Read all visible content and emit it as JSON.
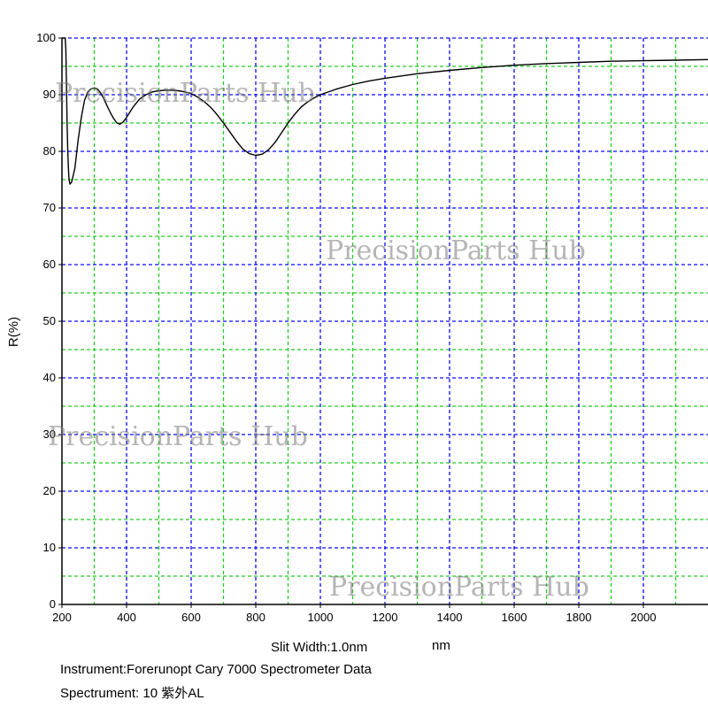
{
  "chart_data": {
    "type": "line",
    "xlabel": "nm",
    "ylabel": "R(%)",
    "xlim": [
      200,
      2200
    ],
    "ylim": [
      0,
      100
    ],
    "x_ticks": [
      200,
      400,
      600,
      800,
      1000,
      1200,
      1400,
      1600,
      1800,
      2000
    ],
    "y_ticks": [
      0,
      10,
      20,
      30,
      40,
      50,
      60,
      70,
      80,
      90,
      100
    ],
    "x_minor_step": 100,
    "y_minor_step": 5,
    "grid": true,
    "grid_colors": {
      "major": "#0a0aff",
      "minor": "#22cc22"
    },
    "line_color": "#000000",
    "series": [
      {
        "x": [
          200,
          205,
          208,
          210,
          212,
          214,
          216,
          218,
          220,
          222,
          225,
          230,
          240,
          250,
          260,
          270,
          280,
          290,
          300,
          310,
          320,
          330,
          340,
          350,
          360,
          370,
          380,
          390,
          400,
          420,
          440,
          460,
          480,
          500,
          520,
          540,
          560,
          580,
          600,
          620,
          640,
          660,
          680,
          700,
          720,
          740,
          760,
          780,
          800,
          820,
          840,
          860,
          880,
          900,
          920,
          940,
          960,
          980,
          1000,
          1050,
          1100,
          1150,
          1200,
          1300,
          1400,
          1500,
          1600,
          1700,
          1800,
          1900,
          2000,
          2100,
          2200
        ],
        "y": [
          100,
          100,
          100,
          100,
          98,
          92,
          85,
          80,
          77,
          75,
          74.2,
          74.6,
          77,
          82,
          86,
          89,
          90.5,
          91,
          91.2,
          91,
          90.3,
          89.2,
          88,
          86.8,
          85.8,
          85,
          84.8,
          85.2,
          86,
          87.8,
          89.2,
          90,
          90.5,
          90.7,
          90.8,
          90.8,
          90.7,
          90.5,
          90.2,
          89.6,
          88.8,
          87.8,
          86.5,
          85,
          83.4,
          81.8,
          80.4,
          79.6,
          79.3,
          79.5,
          80.3,
          81.6,
          83.3,
          85,
          86.5,
          87.8,
          88.7,
          89.4,
          90,
          91,
          91.8,
          92.4,
          92.9,
          93.7,
          94.3,
          94.8,
          95.2,
          95.5,
          95.7,
          95.9,
          96,
          96.1,
          96.2
        ]
      }
    ]
  },
  "info": {
    "slit": "Slit Width:1.0nm",
    "instrument": "Instrument:Forerunopt Cary 7000 Spectrometer Data",
    "spectrument": "Spectrument:  10  紫外AL"
  },
  "watermarks": [
    "PrecisionParts Hub",
    "PrecisionParts Hub",
    "PrecisionParts Hub",
    "PrecisionParts Hub"
  ]
}
